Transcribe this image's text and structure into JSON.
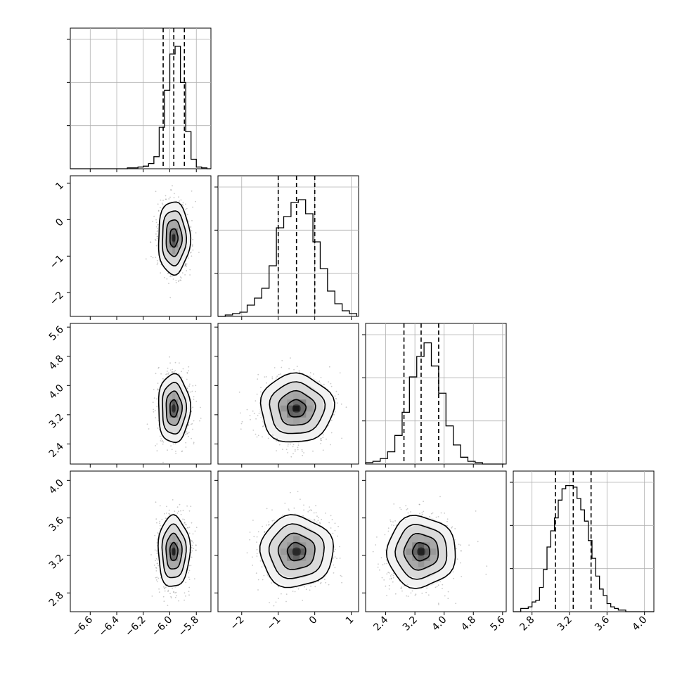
{
  "chart_data": {
    "type": "corner",
    "parameters": [
      {
        "range": [
          -6.75,
          -5.69
        ],
        "ticks": [
          -6.6,
          -6.4,
          -6.2,
          -6.0,
          -5.8
        ],
        "tick_labels": [
          "−6.6",
          "−6.4",
          "−6.2",
          "−6.0",
          "−5.8"
        ],
        "center": -5.97,
        "spread": 0.06,
        "quantiles": [
          -6.05,
          -5.97,
          -5.89
        ]
      },
      {
        "range": [
          -2.65,
          1.2
        ],
        "ticks": [
          -2,
          -1,
          0,
          1
        ],
        "tick_labels": [
          "−2",
          "−1",
          "0",
          "1"
        ],
        "center": -0.5,
        "spread": 0.5,
        "quantiles": [
          -1.0,
          -0.5,
          0.0
        ]
      },
      {
        "range": [
          1.85,
          5.7
        ],
        "ticks": [
          2.4,
          3.2,
          4.0,
          4.8,
          5.6
        ],
        "tick_labels": [
          "2.4",
          "3.2",
          "4.0",
          "4.8",
          "5.6"
        ],
        "center": 3.37,
        "spread": 0.47,
        "quantiles": [
          2.9,
          3.37,
          3.85
        ]
      },
      {
        "range": [
          2.6,
          4.1
        ],
        "ticks": [
          2.8,
          3.2,
          3.6,
          4.0
        ],
        "tick_labels": [
          "2.8",
          "3.2",
          "3.6",
          "4.0"
        ],
        "center": 3.24,
        "spread": 0.19,
        "quantiles": [
          3.05,
          3.24,
          3.43
        ]
      }
    ],
    "histograms": [
      {
        "param": 0,
        "bins": [
          -6.75,
          -6.72,
          -6.68,
          -6.64,
          -6.6,
          -6.56,
          -6.52,
          -6.48,
          -6.44,
          -6.4,
          -6.36,
          -6.32,
          -6.28,
          -6.24,
          -6.2,
          -6.16,
          -6.12,
          -6.08,
          -6.04,
          -6.0,
          -5.96,
          -5.92,
          -5.88,
          -5.84,
          -5.8,
          -5.76,
          -5.72,
          -5.69
        ],
        "counts": [
          0,
          0,
          0,
          0,
          0,
          0,
          0,
          0,
          0,
          0,
          0,
          1,
          1,
          2,
          3,
          6,
          14,
          48,
          91,
          133,
          142,
          100,
          43,
          11,
          2,
          1,
          0
        ],
        "ylim": [
          0,
          150
        ]
      },
      {
        "param": 1,
        "bins": [
          -2.65,
          -2.45,
          -2.25,
          -2.05,
          -1.85,
          -1.65,
          -1.45,
          -1.25,
          -1.05,
          -0.85,
          -0.65,
          -0.45,
          -0.25,
          -0.05,
          0.15,
          0.35,
          0.55,
          0.75,
          0.95,
          1.15
        ],
        "counts": [
          0,
          1,
          2,
          3,
          8,
          13,
          20,
          36,
          63,
          71,
          81,
          83,
          73,
          53,
          34,
          18,
          9,
          4,
          2
        ],
        "ylim": [
          0,
          92
        ]
      },
      {
        "param": 2,
        "bins": [
          1.85,
          2.05,
          2.25,
          2.45,
          2.65,
          2.85,
          3.05,
          3.25,
          3.45,
          3.65,
          3.85,
          4.05,
          4.25,
          4.45,
          4.65,
          4.85,
          5.05,
          5.25,
          5.45,
          5.65
        ],
        "counts": [
          1,
          2,
          4,
          9,
          21,
          38,
          64,
          79,
          89,
          72,
          52,
          28,
          14,
          5,
          2,
          1,
          0,
          0,
          0
        ],
        "ylim": [
          0,
          95
        ]
      },
      {
        "param": 3,
        "bins": [
          2.6,
          2.68,
          2.72,
          2.76,
          2.8,
          2.84,
          2.88,
          2.92,
          2.96,
          3.0,
          3.04,
          3.08,
          3.12,
          3.16,
          3.2,
          3.24,
          3.28,
          3.32,
          3.36,
          3.4,
          3.44,
          3.48,
          3.52,
          3.56,
          3.6,
          3.64,
          3.68,
          3.72,
          3.76,
          3.8,
          3.84,
          3.88,
          3.92,
          3.96,
          4.0,
          4.04,
          4.1
        ],
        "counts": [
          0,
          2,
          2,
          3,
          6,
          7,
          15,
          26,
          40,
          50,
          58,
          69,
          76,
          78,
          78,
          77,
          70,
          63,
          56,
          44,
          33,
          22,
          14,
          10,
          5,
          3,
          2,
          1,
          1,
          0,
          0,
          0,
          0,
          0,
          0,
          0
        ],
        "ylim": [
          0,
          80
        ]
      }
    ],
    "scatter_pairs": [
      [
        1,
        0
      ],
      [
        2,
        0
      ],
      [
        2,
        1
      ],
      [
        3,
        0
      ],
      [
        3,
        1
      ],
      [
        3,
        2
      ]
    ],
    "contour_levels": [
      0.5,
      1.0,
      1.5,
      2.0
    ]
  }
}
